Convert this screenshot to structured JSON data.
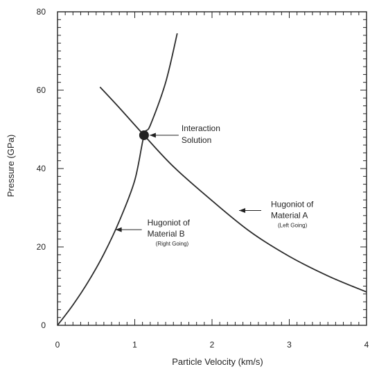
{
  "chart_data": {
    "type": "line",
    "xlabel": "Particle Velocity (km/s)",
    "ylabel": "Pressure (GPa)",
    "xlim": [
      0,
      4
    ],
    "ylim": [
      0,
      80
    ],
    "x_ticks": [
      "0",
      "1",
      "2",
      "3",
      "4"
    ],
    "y_ticks": [
      "0",
      "20",
      "40",
      "60",
      "80"
    ],
    "grid": false,
    "series": [
      {
        "name": "Hugoniot of Material B",
        "points": [
          {
            "x": 0,
            "y": 0
          },
          {
            "x": 0.2,
            "y": 5.2
          },
          {
            "x": 0.4,
            "y": 11.2
          },
          {
            "x": 0.6,
            "y": 18.2
          },
          {
            "x": 0.8,
            "y": 26.6
          },
          {
            "x": 1.0,
            "y": 37.0
          },
          {
            "x": 1.12,
            "y": 48.5
          },
          {
            "x": 1.2,
            "y": 51.0
          },
          {
            "x": 1.4,
            "y": 62.0
          },
          {
            "x": 1.55,
            "y": 74.5
          }
        ]
      },
      {
        "name": "Hugoniot of Material A",
        "points": [
          {
            "x": 0.55,
            "y": 60.8
          },
          {
            "x": 0.8,
            "y": 55.5
          },
          {
            "x": 1.12,
            "y": 48.5
          },
          {
            "x": 1.5,
            "y": 40.5
          },
          {
            "x": 2.0,
            "y": 31.8
          },
          {
            "x": 2.5,
            "y": 23.8
          },
          {
            "x": 3.0,
            "y": 17.6
          },
          {
            "x": 3.5,
            "y": 12.6
          },
          {
            "x": 4.0,
            "y": 8.5
          }
        ]
      }
    ],
    "intersection": {
      "x": 1.12,
      "y": 48.5
    },
    "annotations": {
      "solution": {
        "line1": "Interaction",
        "line2": "Solution",
        "x": 1.12,
        "y": 48.5
      },
      "material_a": {
        "line1": "Hugoniot of",
        "line2": "Material  A",
        "note": "(Left Going)",
        "x": 2.35,
        "y": 29.3
      },
      "material_b": {
        "line1": "Hugoniot of",
        "line2": "Material  B",
        "note": "(Right Going)",
        "x": 0.75,
        "y": 24.4
      }
    }
  }
}
